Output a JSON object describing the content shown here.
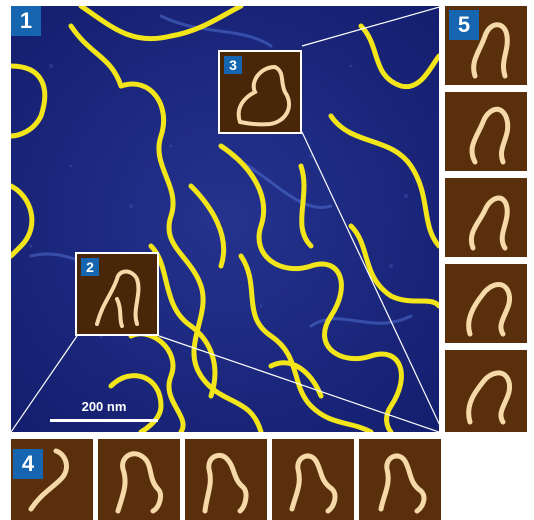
{
  "panels": {
    "main_label": "1",
    "inset_a_label": "2",
    "inset_b_label": "3",
    "bottom_strip_label": "4",
    "right_strip_label": "5"
  },
  "scale_bar": {
    "label": "200 nm"
  },
  "colors": {
    "background_blue": "#1c2a8a",
    "strand_yellow": "#f2e51a",
    "zoom_brown": "#5a2f0c",
    "zoom_strand": "#f5d9a8",
    "badge_blue": "#1565b0"
  }
}
